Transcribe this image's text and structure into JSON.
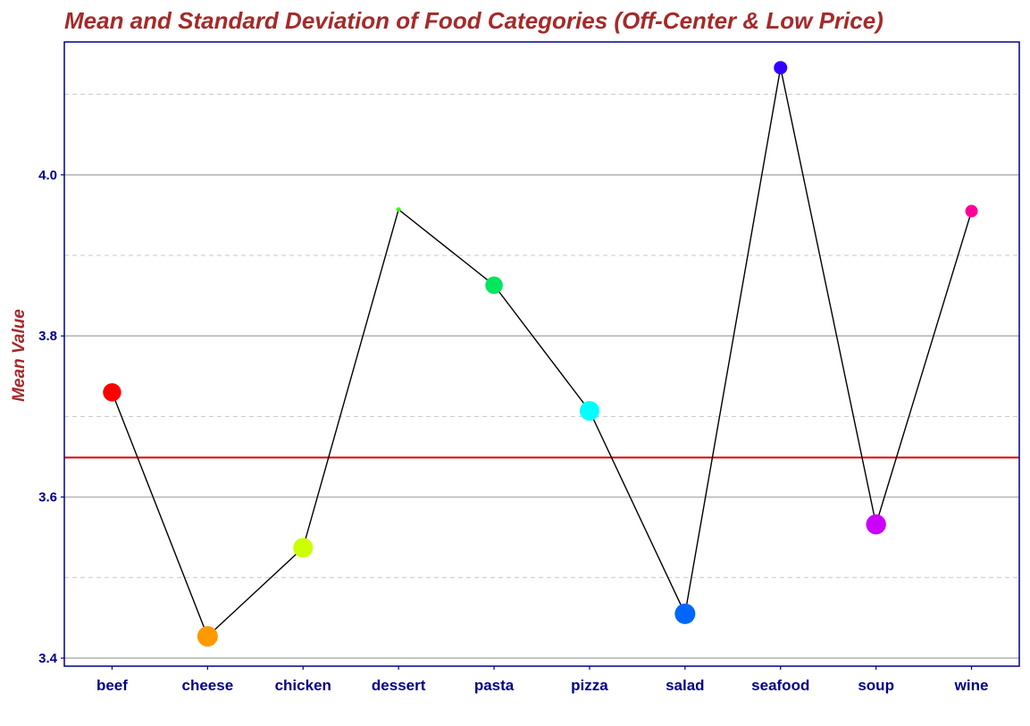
{
  "chart_data": {
    "type": "line",
    "title": "Mean and Standard Deviation of Food Categories (Off-Center & Low Price)",
    "xlabel": "",
    "ylabel": "Mean Value",
    "categories": [
      "beef",
      "cheese",
      "chicken",
      "dessert",
      "pasta",
      "pizza",
      "salad",
      "seafood",
      "soup",
      "wine"
    ],
    "values": [
      3.73,
      3.427,
      3.537,
      3.957,
      3.863,
      3.707,
      3.455,
      4.133,
      3.566,
      3.955
    ],
    "sd": [
      0.82,
      0.95,
      0.9,
      0.05,
      0.78,
      0.9,
      0.95,
      0.55,
      0.92,
      0.5
    ],
    "point_colors": [
      "#ff0000",
      "#ff9900",
      "#ccff00",
      "#33ff00",
      "#00e65c",
      "#00ffff",
      "#0066ff",
      "#3300ff",
      "#cc00ff",
      "#ff0099"
    ],
    "reference_line": {
      "value": 3.649,
      "color": "#e00000"
    },
    "ylim": [
      3.39,
      4.165
    ],
    "yticks": [
      3.4,
      3.6,
      3.8,
      4.0
    ],
    "ytick_labels": [
      "3.4",
      "3.6",
      "3.8",
      "4.0"
    ],
    "minor_yticks": [
      3.5,
      3.7,
      3.9,
      4.1
    ],
    "grid": true,
    "legend": "none",
    "colors": {
      "title": "#a52a2a",
      "axis": "#00008b",
      "line": "#000000"
    }
  }
}
